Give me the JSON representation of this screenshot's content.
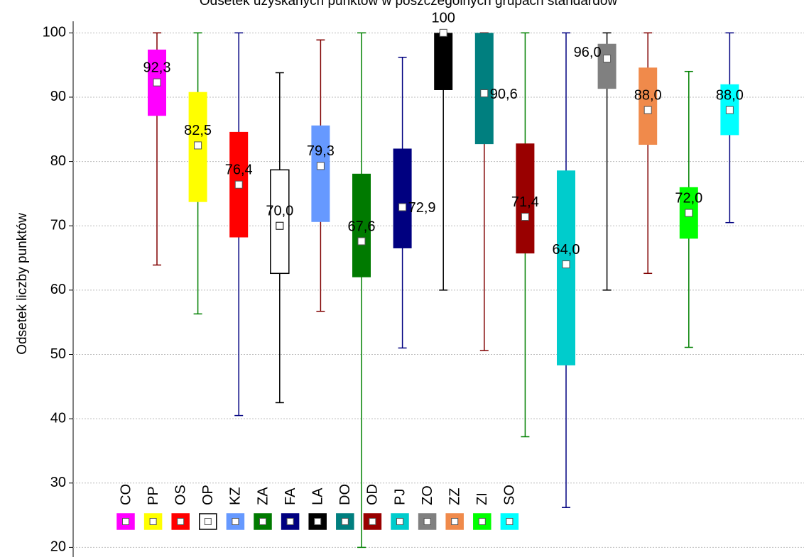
{
  "chart_data": {
    "type": "box",
    "title": "Odsetek uzyskanych punktów w poszczególnych grupach standardów",
    "y_label": "Odsetek liczby punktów",
    "categories": [
      "CO",
      "PP",
      "OS",
      "OP",
      "KZ",
      "ZA",
      "FA",
      "LA",
      "DO",
      "OD",
      "PJ",
      "ZO",
      "ZZ",
      "ZI",
      "SO"
    ],
    "colors": [
      "#ff00ff",
      "#ffff00",
      "#ff0000",
      "#ffffff",
      "#6699ff",
      "#007a00",
      "#000080",
      "#000000",
      "#007f7f",
      "#990000",
      "#00cccc",
      "#808080",
      "#f08a4b",
      "#00ff00",
      "#00ffff"
    ],
    "whisker_colors": [
      "#800000",
      "#008000",
      "#000080",
      "#000000",
      "#800000",
      "#008000",
      "#000080",
      "#000000",
      "#800000",
      "#008000",
      "#000080",
      "#000000",
      "#800000",
      "#008000",
      "#000080"
    ],
    "min": [
      63.9,
      56.3,
      40.5,
      42.5,
      56.7,
      20.0,
      51.0,
      60.0,
      50.6,
      37.2,
      26.2,
      60.0,
      62.6,
      51.1,
      70.5
    ],
    "q1": [
      87.1,
      73.7,
      68.2,
      62.6,
      70.6,
      62.0,
      66.5,
      91.1,
      82.7,
      65.7,
      48.3,
      91.3,
      82.6,
      68.0,
      84.1
    ],
    "mean": [
      92.3,
      82.5,
      76.4,
      70.0,
      79.3,
      67.6,
      72.9,
      100,
      90.6,
      71.4,
      64.0,
      96.0,
      88.0,
      72.0,
      88.0
    ],
    "mean_labels": [
      "92,3",
      "82,5",
      "76,4",
      "70,0",
      "79,3",
      "67,6",
      "72,9",
      "100",
      "90,6",
      "71,4",
      "64,0",
      "96,0",
      "88,0",
      "72,0",
      "88,0"
    ],
    "q3": [
      97.4,
      90.8,
      84.6,
      78.7,
      85.6,
      78.1,
      82.0,
      100,
      100,
      82.8,
      78.6,
      98.3,
      94.6,
      76.0,
      92.0
    ],
    "max": [
      100,
      100,
      100,
      93.8,
      98.9,
      100,
      96.2,
      100,
      100,
      100,
      100,
      100,
      100,
      94.0,
      100
    ],
    "ylim": [
      18.5,
      101.8
    ],
    "yticks": [
      20,
      30,
      40,
      50,
      60,
      70,
      80,
      90,
      100
    ],
    "grid": true
  }
}
